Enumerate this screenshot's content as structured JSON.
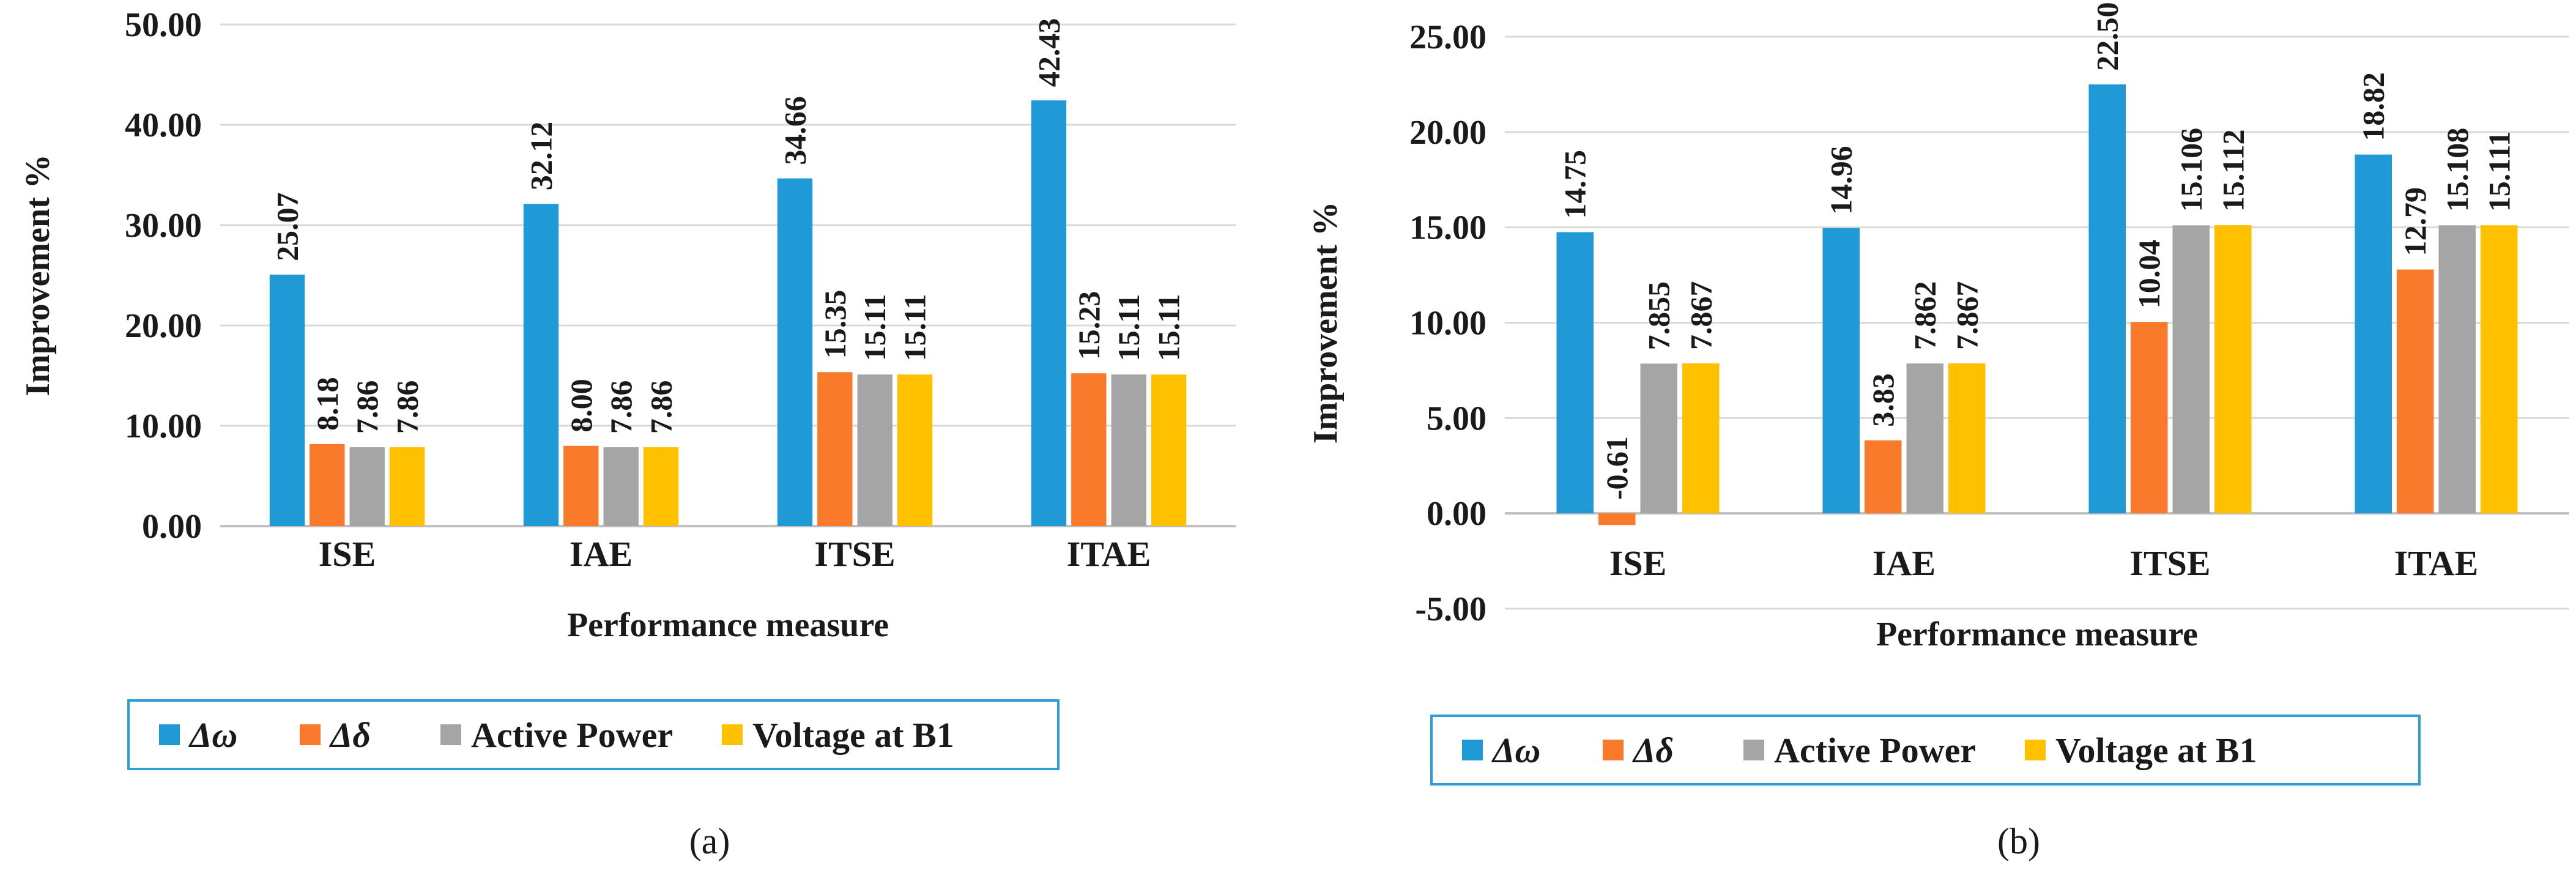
{
  "legend": [
    {
      "name": "Δω",
      "color": "#1f9ad6"
    },
    {
      "name": "Δδ",
      "color": "#f97a2b"
    },
    {
      "name": "Active Power",
      "color": "#a5a5a5"
    },
    {
      "name": "Voltage at B1",
      "color": "#ffc000"
    }
  ],
  "chart_data": [
    {
      "type": "bar",
      "panel": "(a)",
      "categories": [
        "ISE",
        "IAE",
        "ITSE",
        "ITAE"
      ],
      "xlabel": "Performance measure",
      "ylabel": "Improvement %",
      "ylim": [
        0,
        50
      ],
      "yticks": [
        "50.00",
        "40.00",
        "30.00",
        "20.00",
        "10.00",
        "0.00"
      ],
      "ytick_values": [
        50,
        40,
        30,
        20,
        10,
        0
      ],
      "series": [
        {
          "name": "Δω",
          "values": [
            25.07,
            32.12,
            34.66,
            42.43
          ],
          "labels": [
            "25.07",
            "32.12",
            "34.66",
            "42.43"
          ]
        },
        {
          "name": "Δδ",
          "values": [
            8.18,
            8.0,
            15.35,
            15.23
          ],
          "labels": [
            "8.18",
            "8.00",
            "15.35",
            "15.23"
          ]
        },
        {
          "name": "Active Power",
          "values": [
            7.86,
            7.86,
            15.11,
            15.11
          ],
          "labels": [
            "7.86",
            "7.86",
            "15.11",
            "15.11"
          ]
        },
        {
          "name": "Voltage at B1",
          "values": [
            7.86,
            7.86,
            15.11,
            15.11
          ],
          "labels": [
            "7.86",
            "7.86",
            "15.11",
            "15.11"
          ]
        }
      ]
    },
    {
      "type": "bar",
      "panel": "(b)",
      "categories": [
        "ISE",
        "IAE",
        "ITSE",
        "ITAE"
      ],
      "xlabel": "Performance measure",
      "ylabel": "Improvement %",
      "ylim": [
        -5,
        25
      ],
      "yticks": [
        "25.00",
        "20.00",
        "15.00",
        "10.00",
        "5.00",
        "0.00",
        "-5.00"
      ],
      "ytick_values": [
        25,
        20,
        15,
        10,
        5,
        0,
        -5
      ],
      "series": [
        {
          "name": "Δω",
          "values": [
            14.75,
            14.96,
            22.5,
            18.82
          ],
          "labels": [
            "14.75",
            "14.96",
            "22.50",
            "18.82"
          ]
        },
        {
          "name": "Δδ",
          "values": [
            -0.61,
            3.83,
            10.04,
            12.79
          ],
          "labels": [
            "-0.61",
            "3.83",
            "10.04",
            "12.79"
          ]
        },
        {
          "name": "Active Power",
          "values": [
            7.855,
            7.862,
            15.106,
            15.108
          ],
          "labels": [
            "7.855",
            "7.862",
            "15.106",
            "15.108"
          ]
        },
        {
          "name": "Voltage at B1",
          "values": [
            7.867,
            7.867,
            15.112,
            15.111
          ],
          "labels": [
            "7.867",
            "7.867",
            "15.112",
            "15.111"
          ]
        }
      ]
    }
  ]
}
